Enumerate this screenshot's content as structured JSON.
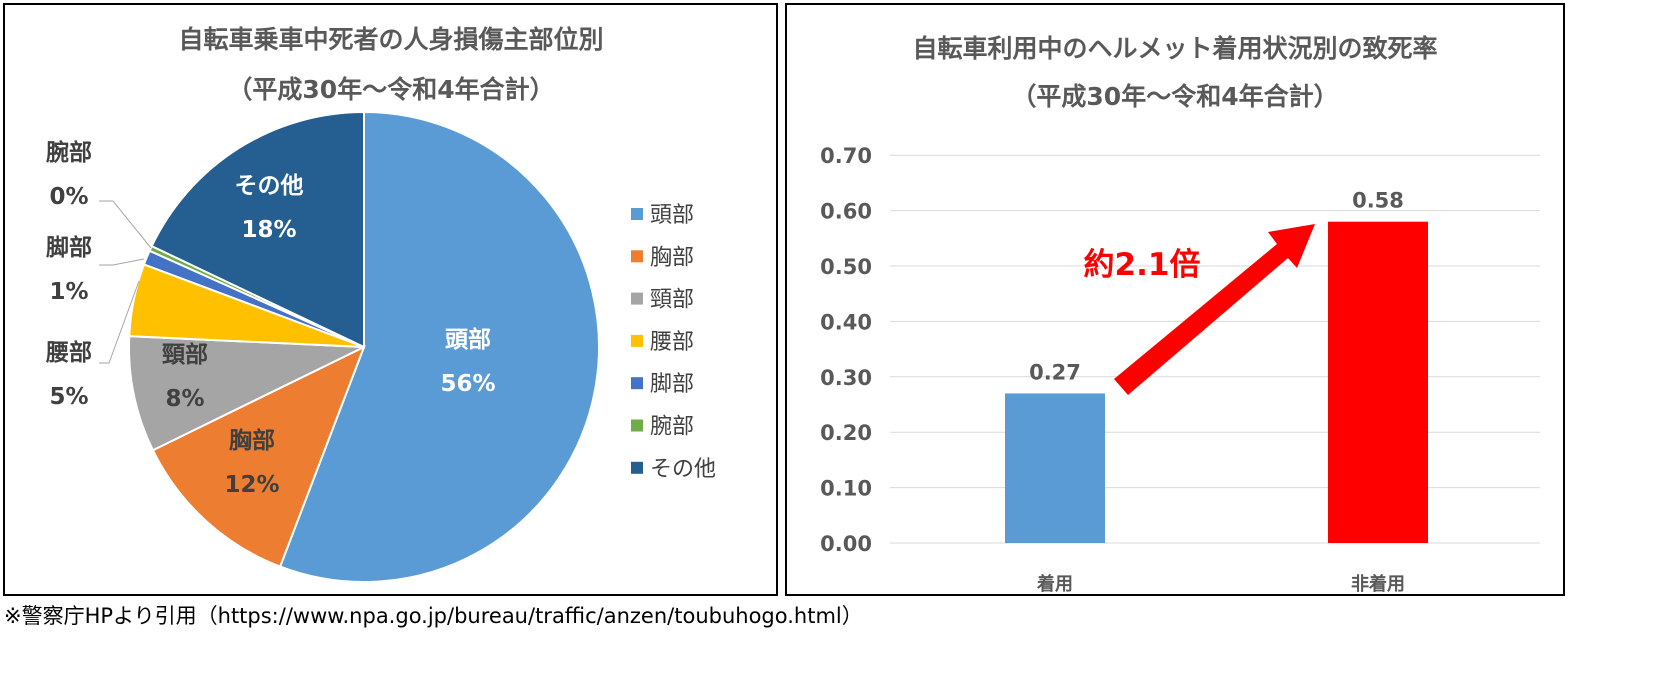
{
  "chart_data": [
    {
      "type": "pie",
      "title": "自転車乗車中死者の人身損傷主部位別",
      "subtitle": "（平成30年～令和4年合計）",
      "categories": [
        "頭部",
        "胸部",
        "頸部",
        "腰部",
        "脚部",
        "腕部",
        "その他"
      ],
      "values": [
        56,
        12,
        8,
        5,
        1,
        0,
        18
      ],
      "value_labels": [
        "56%",
        "12%",
        "8%",
        "5%",
        "1%",
        "0%",
        "18%"
      ],
      "colors": [
        "#5B9BD5",
        "#ED7D31",
        "#A5A5A5",
        "#FFC000",
        "#4472C4",
        "#70AD47",
        "#255E91"
      ],
      "legend_position": "right"
    },
    {
      "type": "bar",
      "title": "自転車利用中のヘルメット着用状況別の致死率",
      "subtitle": "（平成30年～令和4年合計）",
      "categories": [
        "着用",
        "非着用"
      ],
      "values": [
        0.27,
        0.58
      ],
      "value_labels": [
        "0.27",
        "0.58"
      ],
      "colors": [
        "#5B9BD5",
        "#FF0000"
      ],
      "ylim": [
        0,
        0.7
      ],
      "yticks": [
        "0.00",
        "0.10",
        "0.20",
        "0.30",
        "0.40",
        "0.50",
        "0.60",
        "0.70"
      ],
      "grid": true,
      "annotation": "約2.1倍",
      "annotation_color": "#FF0000"
    }
  ],
  "footer": "※警察庁HPより引用（https://www.npa.go.jp/bureau/traffic/anzen/toubuhogo.html）"
}
